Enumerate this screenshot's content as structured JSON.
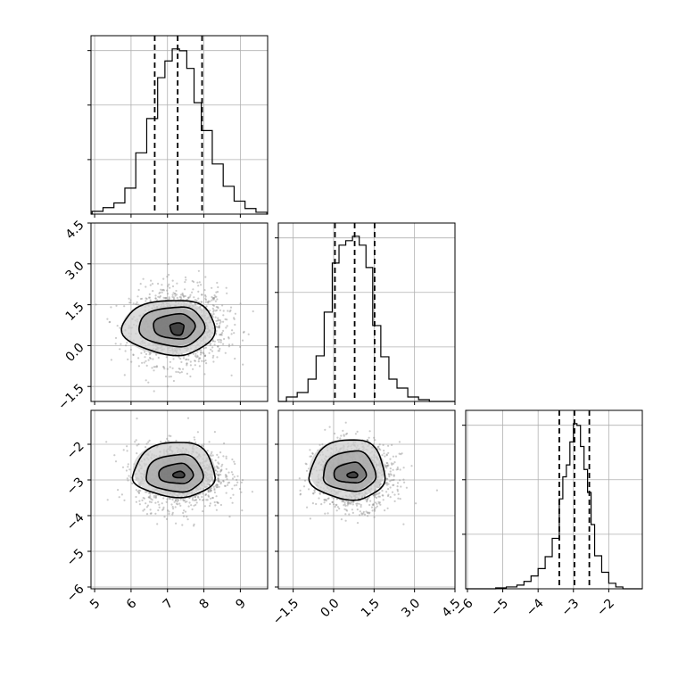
{
  "chart_data": [
    {
      "panel": "hist-param-1",
      "type": "histogram",
      "grid": true,
      "xlim": [
        4.9,
        9.75
      ],
      "x_ticks": [
        "5",
        "6",
        "7",
        "8",
        "9"
      ],
      "bin_edges": [
        4.93,
        5.23,
        5.53,
        5.83,
        6.13,
        6.43,
        6.73,
        6.93,
        7.13,
        7.33,
        7.53,
        7.73,
        7.93,
        8.23,
        8.53,
        8.83,
        9.13,
        9.43,
        9.73
      ],
      "counts": [
        3,
        7,
        12,
        28,
        66,
        103,
        147,
        165,
        178,
        176,
        157,
        120,
        90,
        54,
        30,
        14,
        6,
        2
      ],
      "quantiles": [
        6.65,
        7.28,
        7.95
      ]
    },
    {
      "panel": "hist-param-2",
      "type": "histogram",
      "grid": true,
      "xlim": [
        -2.05,
        4.5
      ],
      "x_ticks": [
        "−1.5",
        "0.0",
        "1.5",
        "3.0",
        "4.5"
      ],
      "bin_edges": [
        -1.75,
        -1.35,
        -0.95,
        -0.65,
        -0.35,
        -0.05,
        0.2,
        0.45,
        0.7,
        0.95,
        1.2,
        1.45,
        1.75,
        2.05,
        2.35,
        2.75,
        3.15,
        3.55
      ],
      "counts": [
        5,
        10,
        25,
        51,
        100,
        155,
        175,
        180,
        185,
        175,
        150,
        85,
        50,
        25,
        15,
        5,
        2
      ],
      "quantiles": [
        0.05,
        0.78,
        1.52
      ]
    },
    {
      "panel": "hist-param-3",
      "type": "histogram",
      "grid": true,
      "xlim": [
        -6.05,
        -1.05
      ],
      "x_ticks": [
        "−6",
        "−5",
        "−4",
        "−3",
        "−2"
      ],
      "bin_edges": [
        -6.05,
        -5.2,
        -4.9,
        -4.6,
        -4.4,
        -4.2,
        -4.0,
        -3.8,
        -3.6,
        -3.4,
        -3.3,
        -3.2,
        -3.1,
        -3.0,
        -2.9,
        -2.8,
        -2.7,
        -2.6,
        -2.5,
        -2.4,
        -2.2,
        -2.0,
        -1.8,
        -1.6
      ],
      "counts": [
        0,
        1,
        2,
        4,
        8,
        14,
        22,
        35,
        55,
        98,
        122,
        135,
        160,
        180,
        178,
        155,
        130,
        105,
        70,
        36,
        18,
        6,
        2
      ],
      "quantiles": [
        -3.4,
        -2.97,
        -2.55
      ]
    },
    {
      "panel": "scatter-param-1-vs-param-2",
      "type": "scatter",
      "grid": true,
      "xlim": [
        4.9,
        9.75
      ],
      "ylim": [
        -2.05,
        4.5
      ],
      "y_ticks": [
        "−1.5",
        "0.0",
        "1.5",
        "3.0",
        "4.5"
      ],
      "center": [
        7.3,
        0.7
      ],
      "spread": [
        0.65,
        0.7
      ],
      "contour_levels": [
        [
          1.55,
          1.0,
          0.98,
          1.04
        ],
        [
          1.1,
          0.71,
          0.72,
          0.73
        ],
        [
          0.7,
          0.45,
          0.46,
          0.46
        ],
        [
          0.23,
          0.15,
          0.13,
          0.33
        ]
      ]
    },
    {
      "panel": "scatter-param-1-vs-param-3",
      "type": "scatter",
      "grid": true,
      "xlim": [
        4.9,
        9.75
      ],
      "ylim": [
        -6.05,
        -1.05
      ],
      "y_ticks": [
        "−2",
        "−3",
        "−4",
        "−5",
        "−6"
      ],
      "center": [
        7.35,
        -2.88
      ],
      "spread": [
        0.6,
        0.45
      ],
      "contour_levels": [
        [
          1.3,
          0.95,
          0.96,
          0.6
        ],
        [
          0.95,
          0.62,
          0.6,
          0.45
        ],
        [
          0.6,
          0.35,
          0.34,
          0.22
        ],
        [
          0.2,
          0.12,
          0.12,
          0.06
        ]
      ]
    },
    {
      "panel": "scatter-param-2-vs-param-3",
      "type": "scatter",
      "grid": true,
      "xlim": [
        -2.05,
        4.5
      ],
      "ylim": [
        -6.05,
        -1.05
      ],
      "center": [
        0.75,
        -2.88
      ],
      "spread": [
        0.72,
        0.45
      ],
      "contour_levels": [
        [
          1.65,
          1.15,
          1.03,
          0.67
        ],
        [
          1.15,
          0.8,
          0.7,
          0.43
        ],
        [
          0.75,
          0.45,
          0.37,
          0.2
        ],
        [
          0.25,
          0.14,
          0.1,
          0.06
        ]
      ]
    }
  ]
}
